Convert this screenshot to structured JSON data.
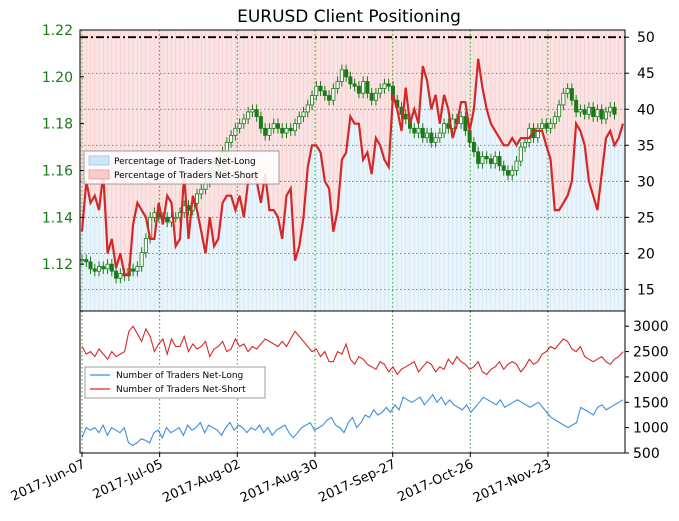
{
  "chart_data": [
    {
      "type": "line",
      "title": "EURUSD Client Positioning",
      "x_tick_labels": [
        "2017-Jun-07",
        "2017-Jul-05",
        "2017-Aug-02",
        "2017-Aug-30",
        "2017-Sep-27",
        "2017-Oct-26",
        "2017-Nov-23"
      ],
      "x_range": [
        "2017-06-07",
        "2017-12-05"
      ],
      "left_axis": {
        "ticks": [
          "1.22",
          "1.20",
          "1.18",
          "1.16",
          "1.14",
          "1.12"
        ],
        "range": [
          1.1,
          1.22
        ],
        "color": "#1a7a1a"
      },
      "right_axis": {
        "ticks": [
          "50",
          "45",
          "40",
          "35",
          "30",
          "25",
          "20",
          "15"
        ],
        "range": [
          12,
          51
        ]
      },
      "legend": {
        "placement": "center-left",
        "items": [
          {
            "label": "Percentage of Traders Net-Long",
            "color": "#cfe6f7"
          },
          {
            "label": "Percentage of Traders Net-Short",
            "color": "#f7cccc"
          }
        ]
      },
      "series": [
        {
          "name": "Percentage of Traders Net-Short",
          "axis": "right",
          "color": "#d62728",
          "values": [
            23,
            30,
            27,
            28,
            26,
            31,
            20,
            22,
            18,
            20,
            17,
            17,
            24,
            27,
            26,
            25,
            22,
            22,
            27,
            24,
            28,
            27,
            21,
            22,
            31,
            22,
            28,
            26,
            23,
            20,
            25,
            21,
            22,
            27,
            28,
            28,
            26,
            28,
            25,
            30,
            31,
            30,
            27,
            31,
            26,
            26,
            25,
            22,
            28,
            29,
            19,
            21,
            25,
            32,
            35,
            35,
            34,
            30,
            29,
            23,
            26,
            33,
            34,
            39,
            38,
            38,
            33,
            34,
            31,
            36,
            35,
            33,
            32,
            42,
            40,
            37,
            43,
            38,
            40,
            38,
            46,
            44,
            40,
            42,
            38,
            42,
            40,
            36,
            38,
            41,
            41,
            37,
            40,
            47,
            43,
            40,
            38,
            37,
            36,
            35,
            35,
            36,
            35,
            36,
            36,
            36,
            37,
            37,
            37,
            35,
            33,
            26,
            26,
            27,
            28,
            30,
            38,
            37,
            35,
            30,
            28,
            26,
            31,
            36,
            37,
            35,
            36,
            38
          ],
          "fill_regions": "area above series (to 50) shaded light red; area below shaded light blue"
        },
        {
          "name": "EURUSD",
          "axis": "left",
          "type": "candlestick",
          "color": "#1a7a1a",
          "values": [
            1.122,
            1.121,
            1.118,
            1.117,
            1.119,
            1.118,
            1.12,
            1.117,
            1.114,
            1.116,
            1.115,
            1.118,
            1.117,
            1.119,
            1.125,
            1.131,
            1.14,
            1.142,
            1.14,
            1.14,
            1.138,
            1.14,
            1.14,
            1.142,
            1.145,
            1.143,
            1.146,
            1.15,
            1.152,
            1.155,
            1.16,
            1.163,
            1.162,
            1.168,
            1.172,
            1.175,
            1.178,
            1.18,
            1.182,
            1.185,
            1.186,
            1.183,
            1.178,
            1.175,
            1.178,
            1.18,
            1.178,
            1.176,
            1.178,
            1.177,
            1.18,
            1.183,
            1.185,
            1.188,
            1.192,
            1.196,
            1.194,
            1.192,
            1.19,
            1.195,
            1.198,
            1.203,
            1.2,
            1.197,
            1.196,
            1.193,
            1.198,
            1.193,
            1.19,
            1.193,
            1.195,
            1.197,
            1.196,
            1.19,
            1.187,
            1.184,
            1.182,
            1.178,
            1.176,
            1.178,
            1.174,
            1.176,
            1.172,
            1.174,
            1.176,
            1.18,
            1.178,
            1.182,
            1.18,
            1.183,
            1.177,
            1.172,
            1.168,
            1.163,
            1.166,
            1.165,
            1.163,
            1.166,
            1.162,
            1.16,
            1.158,
            1.16,
            1.164,
            1.17,
            1.172,
            1.178,
            1.174,
            1.178,
            1.18,
            1.178,
            1.18,
            1.183,
            1.188,
            1.193,
            1.195,
            1.19,
            1.185,
            1.186,
            1.184,
            1.187,
            1.183,
            1.186,
            1.182,
            1.185,
            1.187,
            1.184
          ]
        }
      ],
      "reference_line": {
        "axis": "right",
        "value": 50,
        "style": "dash-dot",
        "color": "#000000"
      }
    },
    {
      "type": "line",
      "x_range": [
        "2017-06-07",
        "2017-12-05"
      ],
      "right_axis": {
        "ticks": [
          "3000",
          "2500",
          "2000",
          "1500",
          "1000",
          "500"
        ],
        "range": [
          500,
          3300
        ]
      },
      "legend": {
        "placement": "center-left",
        "items": [
          {
            "label": "Number of Traders Net-Long",
            "color": "#3c8fe0"
          },
          {
            "label": "Number of Traders Net-Short",
            "color": "#d62728"
          }
        ]
      },
      "series": [
        {
          "name": "Number of Traders Net-Long",
          "color": "#3c8fe0",
          "values": [
            800,
            1000,
            950,
            1000,
            900,
            1050,
            850,
            1000,
            950,
            900,
            1000,
            700,
            650,
            700,
            780,
            750,
            700,
            900,
            950,
            800,
            1000,
            900,
            950,
            1000,
            850,
            1050,
            950,
            1000,
            1100,
            900,
            1050,
            1000,
            950,
            850,
            1000,
            1100,
            950,
            1050,
            1000,
            900,
            1000,
            950,
            1050,
            900,
            1000,
            850,
            950,
            1000,
            1050,
            900,
            800,
            900,
            1000,
            1050,
            1100,
            950,
            1000,
            1050,
            1150,
            1200,
            1050,
            1000,
            900,
            1100,
            1200,
            1000,
            1100,
            1250,
            1200,
            1350,
            1250,
            1300,
            1400,
            1300,
            1450,
            1350,
            1600,
            1550,
            1500,
            1550,
            1600,
            1450,
            1550,
            1650,
            1500,
            1600,
            1450,
            1550,
            1450,
            1400,
            1350,
            1450,
            1300,
            1400,
            1500,
            1600,
            1550,
            1500,
            1450,
            1550,
            1400,
            1450,
            1500,
            1550,
            1500,
            1450,
            1400,
            1450,
            1500,
            1400,
            1300,
            1200,
            1150,
            1100,
            1050,
            1000,
            1050,
            1100,
            1400,
            1350,
            1300,
            1250,
            1400,
            1450,
            1350,
            1400,
            1450,
            1500,
            1550
          ],
          "fill": "none"
        },
        {
          "name": "Number of Traders Net-Short",
          "color": "#d62728",
          "values": [
            2600,
            2450,
            2500,
            2400,
            2550,
            2450,
            2350,
            2500,
            2400,
            2450,
            2500,
            2900,
            3000,
            2850,
            2700,
            2950,
            2800,
            2500,
            2650,
            2750,
            2450,
            2750,
            2600,
            2600,
            2800,
            2500,
            2650,
            2550,
            2600,
            2700,
            2400,
            2550,
            2600,
            2700,
            2500,
            2550,
            2750,
            2600,
            2650,
            2500,
            2600,
            2550,
            2650,
            2750,
            2700,
            2650,
            2600,
            2700,
            2600,
            2750,
            2900,
            2800,
            2700,
            2600,
            2500,
            2550,
            2400,
            2500,
            2300,
            2300,
            2500,
            2450,
            2650,
            2350,
            2250,
            2400,
            2350,
            2250,
            2200,
            2150,
            2300,
            2250,
            2100,
            2200,
            2050,
            2150,
            2200,
            2250,
            2300,
            2100,
            2200,
            2300,
            2250,
            2100,
            2200,
            2150,
            2350,
            2250,
            2400,
            2300,
            2250,
            2150,
            2200,
            2300,
            2100,
            2050,
            2150,
            2200,
            2300,
            2150,
            2250,
            2300,
            2250,
            2100,
            2200,
            2350,
            2250,
            2300,
            2450,
            2500,
            2600,
            2550,
            2650,
            2750,
            2700,
            2550,
            2500,
            2600,
            2400,
            2350,
            2300,
            2350,
            2400,
            2300,
            2250,
            2350,
            2400,
            2500
          ]
        }
      ]
    }
  ]
}
